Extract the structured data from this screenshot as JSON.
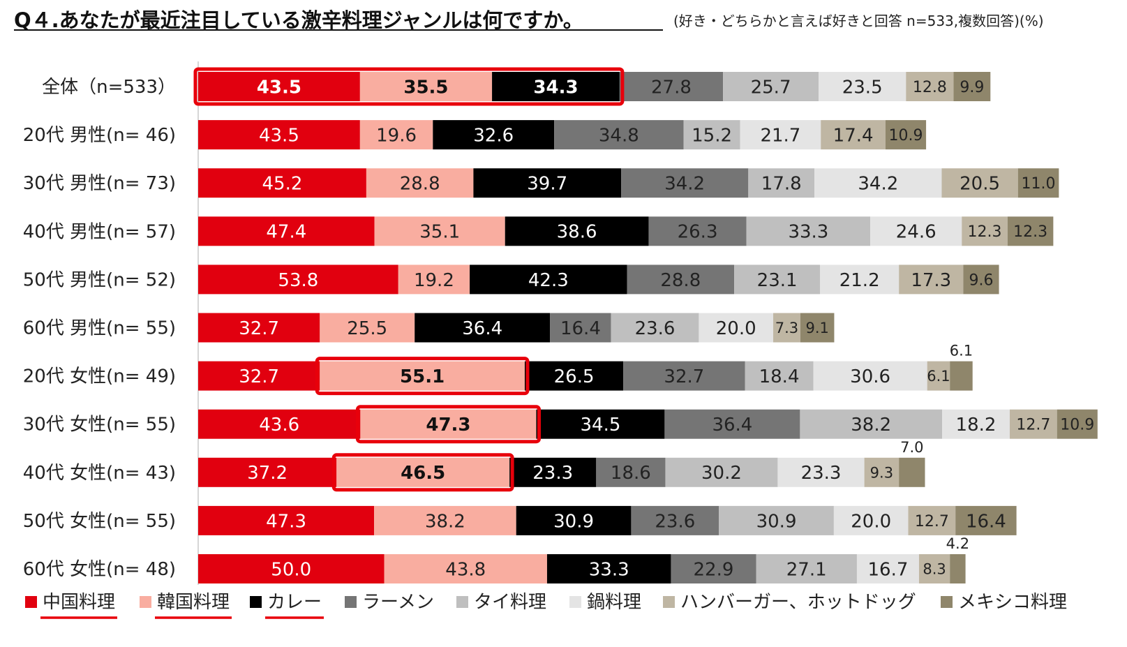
{
  "title": "Q４.あなたが最近注目している激辛料理ジャンルは何ですか。",
  "subtitle": "(好き・どちらかと言えば好きと回答 n=533,複数回答)(%)",
  "colors": [
    "#e1000f",
    "#f9ada0",
    "#000000",
    "#757575",
    "#bfbfbf",
    "#e4e4e4",
    "#bfb6a3",
    "#8f866b"
  ],
  "chart_data": {
    "type": "bar",
    "orientation": "horizontal-stacked",
    "series": [
      {
        "name": "中国料理",
        "values": [
          43.5,
          43.5,
          45.2,
          47.4,
          53.8,
          32.7,
          32.7,
          43.6,
          37.2,
          47.3,
          50.0
        ]
      },
      {
        "name": "韓国料理",
        "values": [
          35.5,
          19.6,
          28.8,
          35.1,
          19.2,
          25.5,
          55.1,
          47.3,
          46.5,
          38.2,
          43.8
        ]
      },
      {
        "name": "カレー",
        "values": [
          34.3,
          32.6,
          39.7,
          38.6,
          42.3,
          36.4,
          26.5,
          34.5,
          23.3,
          30.9,
          33.3
        ]
      },
      {
        "name": "ラーメン",
        "values": [
          27.8,
          34.8,
          34.2,
          26.3,
          28.8,
          16.4,
          32.7,
          36.4,
          18.6,
          23.6,
          22.9
        ]
      },
      {
        "name": "タイ料理",
        "values": [
          25.7,
          15.2,
          17.8,
          33.3,
          23.1,
          23.6,
          18.4,
          38.2,
          30.2,
          30.9,
          27.1
        ]
      },
      {
        "name": "鍋料理",
        "values": [
          23.5,
          21.7,
          34.2,
          24.6,
          21.2,
          20.0,
          30.6,
          18.2,
          23.3,
          20.0,
          16.7
        ]
      },
      {
        "name": "ハンバーガー、ホットドッグ",
        "values": [
          12.8,
          17.4,
          20.5,
          12.3,
          17.3,
          7.3,
          6.1,
          12.7,
          9.3,
          12.7,
          8.3
        ]
      },
      {
        "name": "メキシコ料理",
        "values": [
          9.9,
          10.9,
          11.0,
          12.3,
          9.6,
          9.1,
          6.1,
          10.9,
          7.0,
          16.4,
          4.2
        ]
      }
    ],
    "value_labels": [
      [
        "43.5",
        "35.5",
        "34.3",
        "27.8",
        "25.7",
        "23.5",
        "12.8",
        "9.9"
      ],
      [
        "43.5",
        "19.6",
        "32.6",
        "34.8",
        "15.2",
        "21.7",
        "17.4",
        "10.9"
      ],
      [
        "45.2",
        "28.8",
        "39.7",
        "34.2",
        "17.8",
        "34.2",
        "20.5",
        "11.0"
      ],
      [
        "47.4",
        "35.1",
        "38.6",
        "26.3",
        "33.3",
        "24.6",
        "12.3",
        "12.3"
      ],
      [
        "53.8",
        "19.2",
        "42.3",
        "28.8",
        "23.1",
        "21.2",
        "17.3",
        "9.6"
      ],
      [
        "32.7",
        "25.5",
        "36.4",
        "16.4",
        "23.6",
        "20.0",
        "7.3",
        "9.1"
      ],
      [
        "32.7",
        "55.1",
        "26.5",
        "32.7",
        "18.4",
        "30.6",
        "6.1",
        "6.1"
      ],
      [
        "43.6",
        "47.3",
        "34.5",
        "36.4",
        "38.2",
        "18.2",
        "12.7",
        "10.9"
      ],
      [
        "37.2",
        "46.5",
        "23.3",
        "18.6",
        "30.2",
        "23.3",
        "9.3",
        "7.0"
      ],
      [
        "47.3",
        "38.2",
        "30.9",
        "23.6",
        "30.9",
        "20.0",
        "12.7",
        "16.4"
      ],
      [
        "50.0",
        "43.8",
        "33.3",
        "22.9",
        "27.1",
        "16.7",
        "8.3",
        "4.2"
      ]
    ],
    "categories": [
      "全体（n=533）",
      "20代 男性(n= 46)",
      "30代 男性(n= 73)",
      "40代 男性(n= 57)",
      "50代 男性(n= 52)",
      "60代 男性(n= 55)",
      "20代 女性(n= 49)",
      "30代 女性(n= 55)",
      "40代 女性(n= 43)",
      "50代 女性(n= 55)",
      "60代 女性(n= 48)"
    ],
    "highlights": [
      {
        "row": 0,
        "segments": [
          0,
          1,
          2
        ]
      },
      {
        "row": 6,
        "segments": [
          1
        ]
      },
      {
        "row": 7,
        "segments": [
          1
        ]
      },
      {
        "row": 8,
        "segments": [
          1
        ]
      }
    ],
    "outside_labels": [
      {
        "row": 6,
        "segment": 7
      },
      {
        "row": 8,
        "segment": 7
      },
      {
        "row": 10,
        "segment": 7
      }
    ],
    "underlined_legend": [
      "中国料理",
      "韓国料理",
      "カレー"
    ]
  }
}
